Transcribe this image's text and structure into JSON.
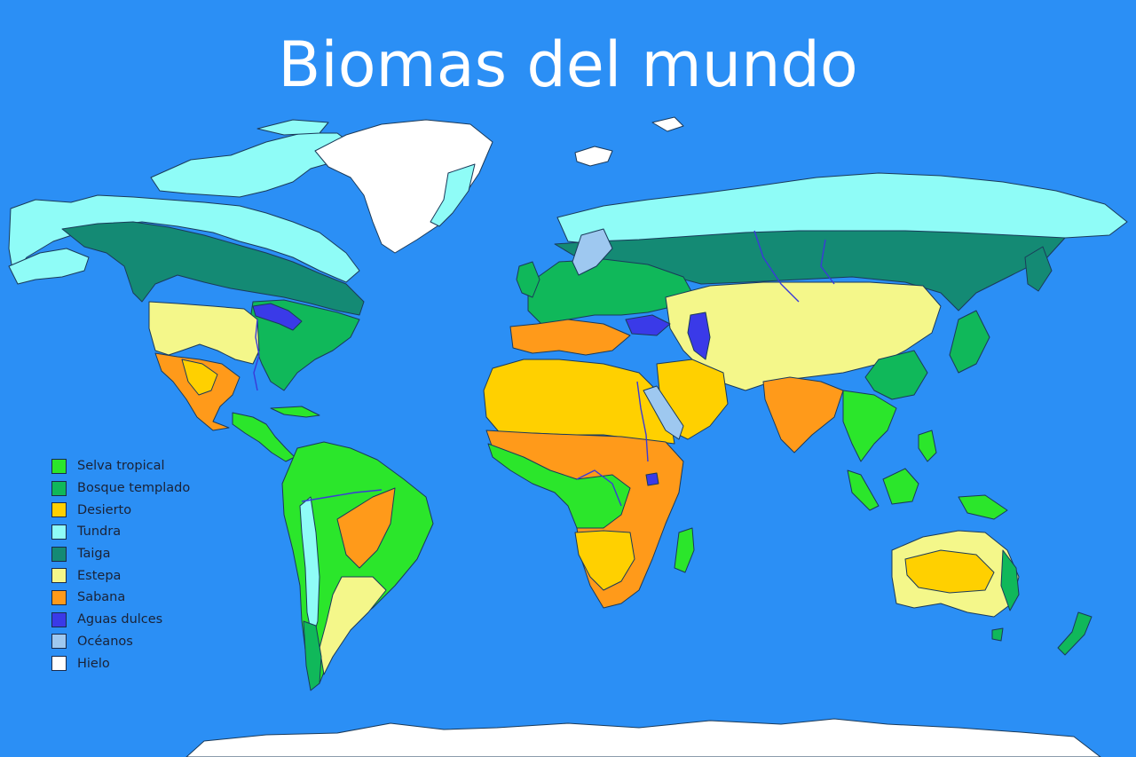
{
  "title": "Biomas del mundo",
  "colors": {
    "ocean_background": "#2b8ff5",
    "selva_tropical": "#2be62b",
    "bosque_templado": "#10b85a",
    "desierto": "#ffd000",
    "tundra": "#8ffcf7",
    "taiga": "#148a74",
    "estepa": "#f4f78a",
    "sabana": "#ff9a1a",
    "aguas_dulces": "#3a3ae8",
    "oceanos": "#9ec8f0",
    "hielo": "#ffffff"
  },
  "legend": [
    {
      "label": "Selva tropical",
      "color": "#2be62b"
    },
    {
      "label": "Bosque templado",
      "color": "#10b85a"
    },
    {
      "label": "Desierto",
      "color": "#ffd000"
    },
    {
      "label": "Tundra",
      "color": "#8ffcf7"
    },
    {
      "label": "Taiga",
      "color": "#148a74"
    },
    {
      "label": "Estepa",
      "color": "#f4f78a"
    },
    {
      "label": "Sabana",
      "color": "#ff9a1a"
    },
    {
      "label": "Aguas dulces",
      "color": "#3a3ae8"
    },
    {
      "label": "Océanos",
      "color": "#9ec8f0"
    },
    {
      "label": "Hielo",
      "color": "#ffffff"
    }
  ]
}
